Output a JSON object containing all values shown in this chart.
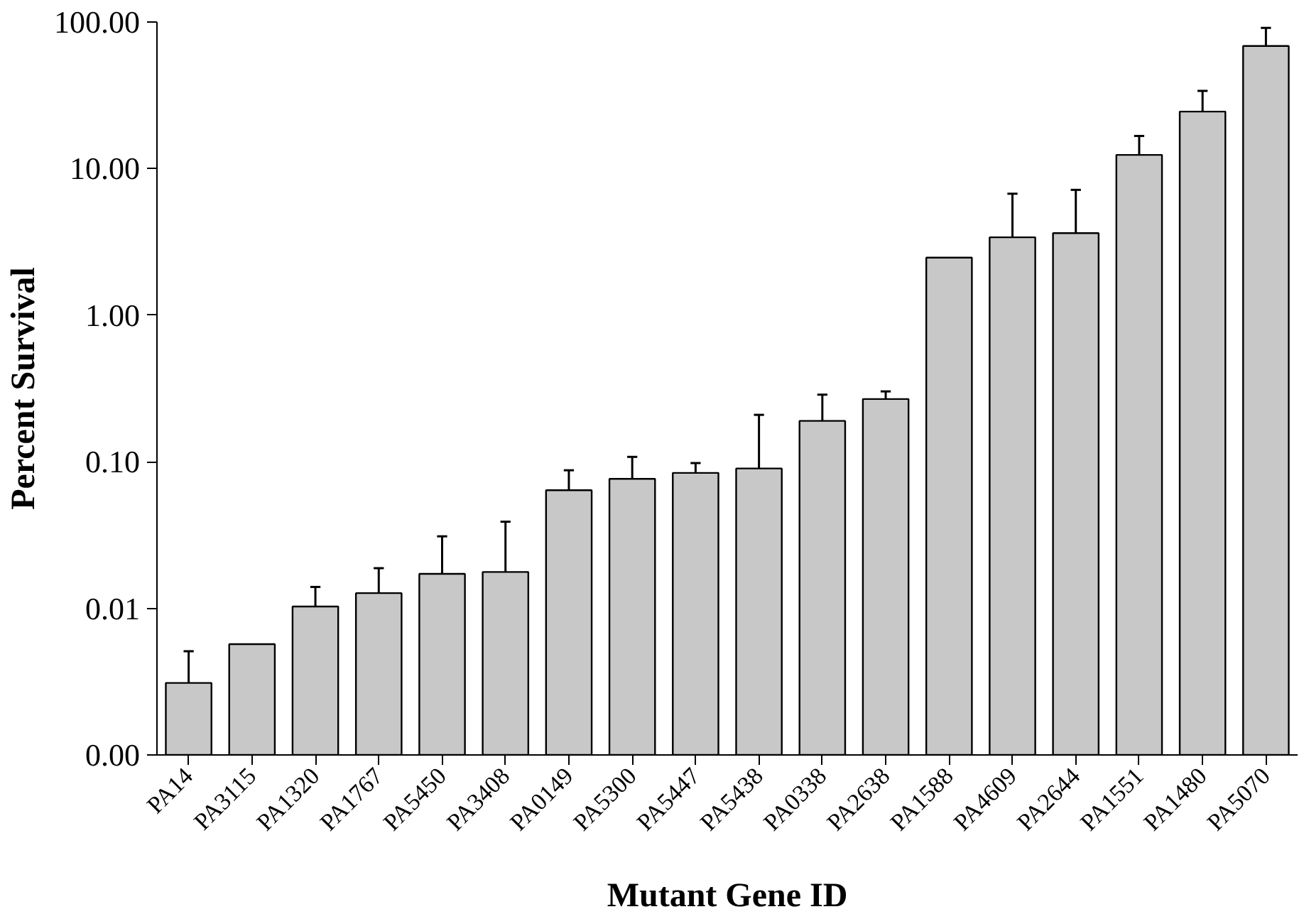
{
  "chart_data": {
    "type": "bar",
    "xlabel": "Mutant Gene ID",
    "ylabel": "Percent Survival",
    "categories": [
      "PA14",
      "PA3115",
      "PA1320",
      "PA1767",
      "PA5450",
      "PA3408",
      "PA0149",
      "PA5300",
      "PA5447",
      "PA5438",
      "PA0338",
      "PA2638",
      "PA1588",
      "PA4609",
      "PA2644",
      "PA1551",
      "PA1480",
      "PA5070"
    ],
    "values": [
      0.0031,
      0.0057,
      0.0103,
      0.0127,
      0.0172,
      0.0177,
      0.064,
      0.0765,
      0.084,
      0.09,
      0.19,
      0.268,
      2.47,
      3.4,
      3.63,
      12.4,
      24.5,
      68.6
    ],
    "errors": [
      [
        0.0031,
        0.0051
      ],
      null,
      [
        0.0103,
        0.014
      ],
      [
        0.0127,
        0.0188
      ],
      [
        0.0172,
        0.031
      ],
      [
        0.0177,
        0.039
      ],
      [
        0.064,
        0.0875
      ],
      [
        0.0765,
        0.108
      ],
      [
        0.084,
        0.098
      ],
      [
        0.09,
        0.209
      ],
      [
        0.19,
        0.287
      ],
      [
        0.268,
        0.302
      ],
      null,
      [
        3.4,
        6.74
      ],
      [
        3.63,
        7.16
      ],
      [
        12.4,
        16.7
      ],
      [
        24.5,
        33.9
      ],
      [
        68.6,
        91.2
      ]
    ],
    "color": "#c8c8c8",
    "log": true,
    "grid": false,
    "ylim": [
      0.001,
      100
    ],
    "yticks": [
      {
        "value": 0.001,
        "label": "0.00"
      },
      {
        "value": 0.01,
        "label": "0.01"
      },
      {
        "value": 0.1,
        "label": "0.10"
      },
      {
        "value": 1,
        "label": "1.00"
      },
      {
        "value": 10,
        "label": "10.00"
      },
      {
        "value": 100,
        "label": "100.00"
      }
    ]
  }
}
